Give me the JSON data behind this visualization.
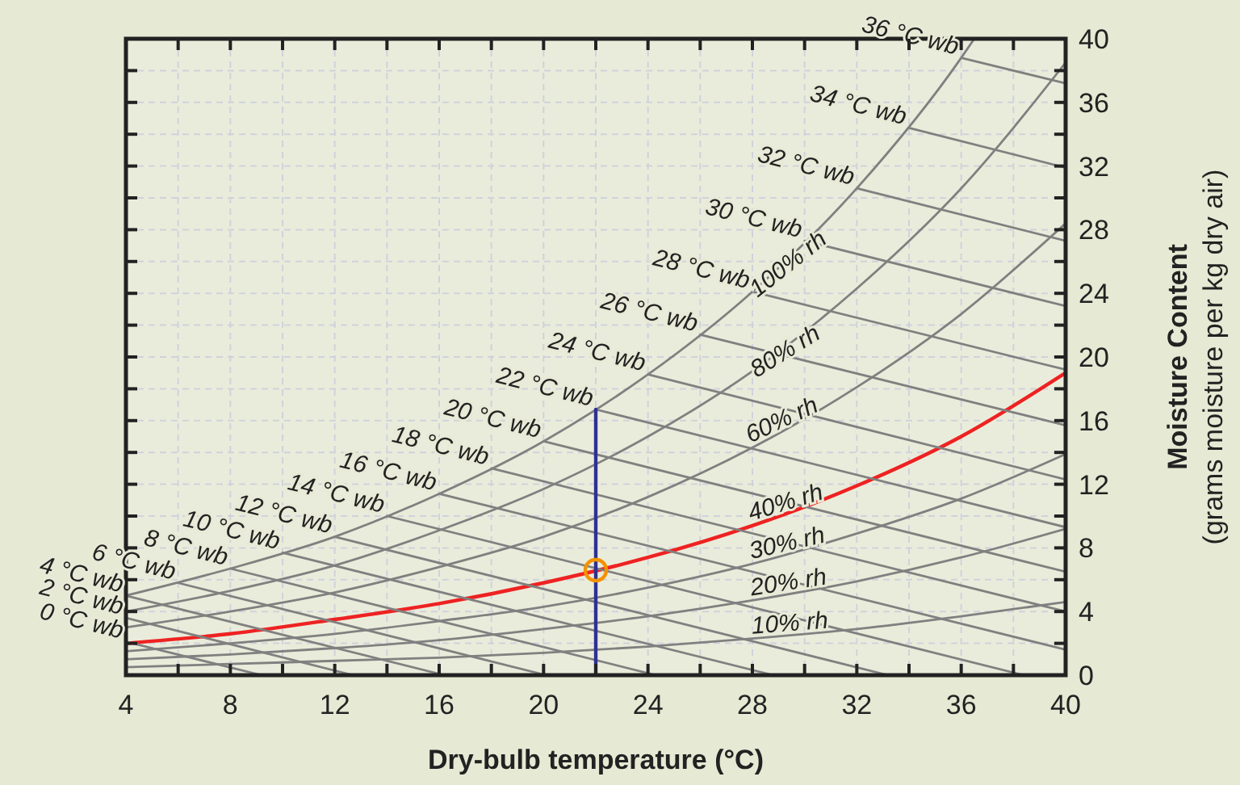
{
  "chart_data": {
    "type": "line",
    "xlabel": "Dry-bulb temperature (°C)",
    "ylabel": "Moisture Content\n(grams moisture per kg dry air)",
    "xlim": [
      4,
      40
    ],
    "xticks": [
      4,
      {
        "value": 6,
        "label": null
      },
      8,
      {
        "value": 10,
        "label": null
      },
      12,
      {
        "value": 14,
        "label": null
      },
      16,
      {
        "value": 18,
        "label": null
      },
      20,
      {
        "value": 22,
        "label": null
      },
      24,
      {
        "value": 26,
        "label": null
      },
      28,
      {
        "value": 30,
        "label": null
      },
      32,
      {
        "value": 34,
        "label": null
      },
      36,
      {
        "value": 38,
        "label": null
      },
      40
    ],
    "ylim": [
      0,
      40
    ],
    "yticks": [
      0,
      {
        "value": 2,
        "label": null
      },
      4,
      {
        "value": 6,
        "label": null
      },
      8,
      {
        "value": 10,
        "label": null
      },
      12,
      {
        "value": 14,
        "label": null
      },
      16,
      {
        "value": 18,
        "label": null
      },
      20,
      {
        "value": 22,
        "label": null
      },
      24,
      {
        "value": 26,
        "label": null
      },
      28,
      {
        "value": 30,
        "label": null
      },
      32,
      {
        "value": 34,
        "label": null
      },
      36,
      {
        "value": 38,
        "label": null
      },
      40
    ],
    "grid": true,
    "legend": false,
    "line_style": "solid",
    "series": [
      {
        "name": "100% rh",
        "color": "#808080",
        "x": [
          4,
          8,
          12,
          16,
          20,
          24,
          28,
          32,
          36,
          36.5
        ],
        "values": [
          5.0,
          6.7,
          8.7,
          11.4,
          14.7,
          18.9,
          24.1,
          30.6,
          38.8,
          40
        ]
      },
      {
        "name": "80% rh",
        "color": "#808080",
        "x": [
          4,
          8,
          12,
          16,
          20,
          24,
          28,
          32,
          36,
          40
        ],
        "values": [
          4.0,
          5.3,
          6.9,
          9.1,
          11.7,
          15.0,
          19.1,
          24.3,
          30.6,
          38.5
        ]
      },
      {
        "name": "60% rh",
        "color": "#808080",
        "x": [
          4,
          8,
          12,
          16,
          20,
          24,
          28,
          32,
          36,
          40
        ],
        "values": [
          3.0,
          4.0,
          5.2,
          6.8,
          8.7,
          11.2,
          14.3,
          18.1,
          22.7,
          28.4
        ]
      },
      {
        "name": "40% rh",
        "color": "#ee2222",
        "x": [
          4,
          8,
          12,
          16,
          20,
          24,
          28,
          32,
          36,
          40
        ],
        "values": [
          2.0,
          2.6,
          3.5,
          4.5,
          5.8,
          7.4,
          9.4,
          11.9,
          15.0,
          19.0
        ]
      },
      {
        "name": "30% rh",
        "color": "#808080",
        "x": [
          4,
          8,
          12,
          16,
          20,
          24,
          28,
          32,
          36,
          40
        ],
        "values": [
          1.5,
          2.0,
          2.6,
          3.4,
          4.3,
          5.5,
          7.0,
          8.9,
          11.1,
          13.9
        ]
      },
      {
        "name": "20% rh",
        "color": "#808080",
        "x": [
          4,
          8,
          12,
          16,
          20,
          24,
          28,
          32,
          36,
          40
        ],
        "values": [
          1.0,
          1.3,
          1.7,
          2.2,
          2.9,
          3.7,
          4.7,
          5.9,
          7.4,
          9.2
        ]
      },
      {
        "name": "10% rh",
        "color": "#808080",
        "x": [
          4,
          8,
          12,
          16,
          20,
          24,
          28,
          32,
          36,
          40
        ],
        "values": [
          0.5,
          0.7,
          0.9,
          1.1,
          1.4,
          1.8,
          2.3,
          2.9,
          3.7,
          4.6
        ]
      },
      {
        "name": "0 °C wb",
        "color": "#808080",
        "x": [
          4,
          9.2
        ],
        "values": [
          2.1,
          0
        ]
      },
      {
        "name": "2 °C wb",
        "color": "#808080",
        "x": [
          4,
          12.7
        ],
        "values": [
          3.6,
          0
        ]
      },
      {
        "name": "4 °C wb",
        "color": "#808080",
        "x": [
          4,
          16.2
        ],
        "values": [
          5.0,
          0
        ]
      },
      {
        "name": "6 °C wb",
        "color": "#808080",
        "x": [
          6,
          20.1
        ],
        "values": [
          5.8,
          0
        ]
      },
      {
        "name": "8 °C wb",
        "color": "#808080",
        "x": [
          8,
          24.3
        ],
        "values": [
          6.7,
          0
        ]
      },
      {
        "name": "10 °C wb",
        "color": "#808080",
        "x": [
          10,
          28.8
        ],
        "values": [
          7.7,
          0
        ]
      },
      {
        "name": "12 °C wb",
        "color": "#808080",
        "x": [
          12,
          33.2
        ],
        "values": [
          8.7,
          0
        ]
      },
      {
        "name": "14 °C wb",
        "color": "#808080",
        "x": [
          14,
          38.4
        ],
        "values": [
          10.0,
          0
        ]
      },
      {
        "name": "16 °C wb",
        "color": "#808080",
        "x": [
          16,
          40
        ],
        "values": [
          11.4,
          1.6
        ]
      },
      {
        "name": "18 °C wb",
        "color": "#808080",
        "x": [
          18,
          40
        ],
        "values": [
          13.0,
          4.0
        ]
      },
      {
        "name": "20 °C wb",
        "color": "#808080",
        "x": [
          20,
          40
        ],
        "values": [
          14.7,
          6.5
        ]
      },
      {
        "name": "22 °C wb",
        "color": "#808080",
        "x": [
          22,
          40
        ],
        "values": [
          16.7,
          9.3
        ]
      },
      {
        "name": "24 °C wb",
        "color": "#808080",
        "x": [
          24,
          40
        ],
        "values": [
          18.9,
          12.3
        ]
      },
      {
        "name": "26 °C wb",
        "color": "#808080",
        "x": [
          26,
          40
        ],
        "values": [
          21.4,
          15.7
        ]
      },
      {
        "name": "28 °C wb",
        "color": "#808080",
        "x": [
          28,
          40
        ],
        "values": [
          24.1,
          19.2
        ]
      },
      {
        "name": "30 °C wb",
        "color": "#808080",
        "x": [
          30,
          40
        ],
        "values": [
          27.3,
          23.2
        ]
      },
      {
        "name": "32 °C wb",
        "color": "#808080",
        "x": [
          32,
          40
        ],
        "values": [
          30.6,
          27.3
        ]
      },
      {
        "name": "34 °C wb",
        "color": "#808080",
        "x": [
          34,
          40
        ],
        "values": [
          34.4,
          31.9
        ]
      },
      {
        "name": "36 °C wb",
        "color": "#808080",
        "x": [
          36,
          40
        ],
        "values": [
          38.8,
          37.2
        ]
      },
      {
        "color": "#2e3192",
        "x": [
          22,
          22
        ],
        "values": [
          0,
          16.7
        ]
      },
      {
        "type": "scatter",
        "marker": "circle",
        "color": "#f39200",
        "x": [
          22
        ],
        "values": [
          6.6
        ]
      }
    ]
  }
}
